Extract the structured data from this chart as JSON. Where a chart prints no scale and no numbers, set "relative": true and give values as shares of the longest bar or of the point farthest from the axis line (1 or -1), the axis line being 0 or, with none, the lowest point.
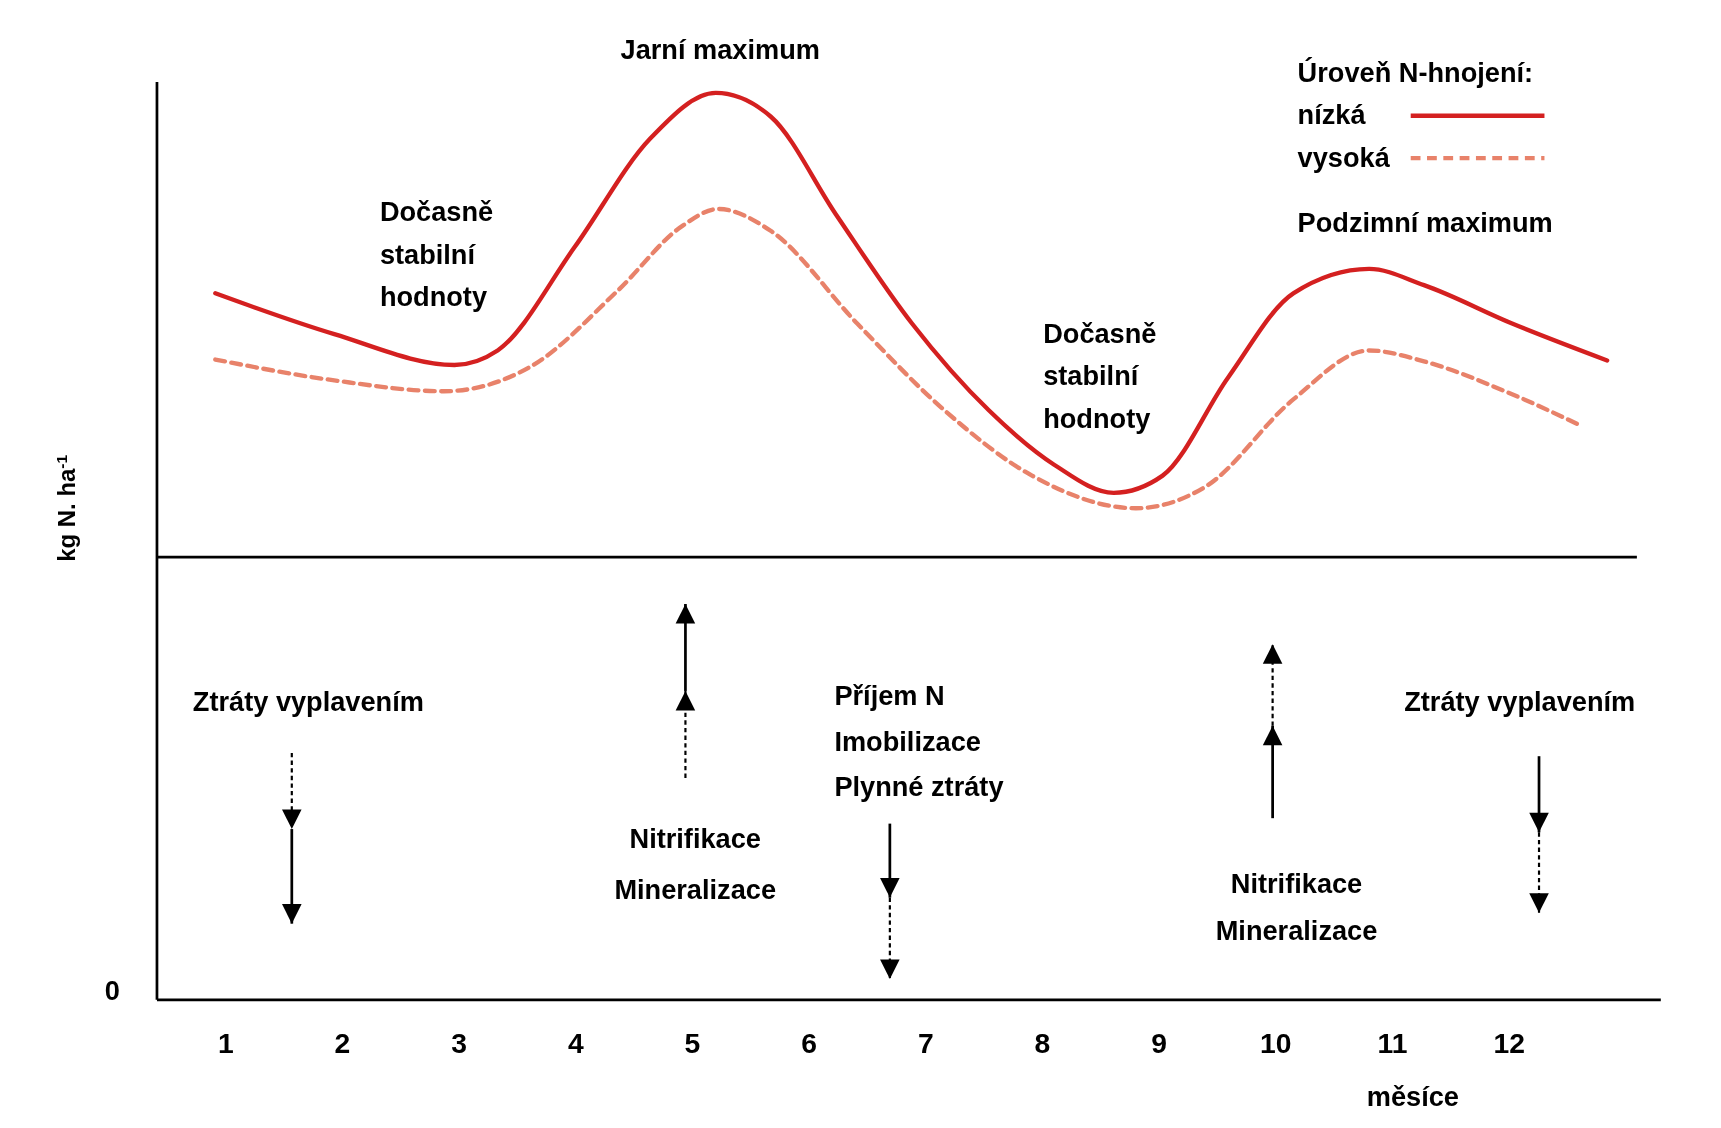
{
  "chart_data": {
    "type": "line",
    "relative": true,
    "xlabel": "měsíce",
    "ylabel": "kg N. ha$^{-1}$",
    "legend_title": "Úroveň N-hnojení:",
    "legend": "top right",
    "xlim": [
      0.41,
      13.3
    ],
    "xticks": [
      1,
      2,
      3,
      4,
      5,
      6,
      7,
      8,
      9,
      10,
      11,
      12
    ],
    "series": [
      {
        "name": "nízká",
        "color": "#d42020",
        "line_style": "solid",
        "x": [
          0.91,
          1.93,
          2.96,
          3.33,
          3.99,
          4.64,
          5.2,
          5.67,
          6.23,
          6.88,
          7.54,
          8.1,
          8.61,
          9.03,
          9.59,
          10.15,
          10.8,
          11.27,
          12.02,
          12.84
        ],
        "values": [
          0.779,
          0.734,
          0.7,
          0.716,
          0.83,
          0.95,
          1.0,
          0.974,
          0.866,
          0.746,
          0.65,
          0.59,
          0.559,
          0.578,
          0.686,
          0.779,
          0.806,
          0.788,
          0.746,
          0.705
        ]
      },
      {
        "name": "vysoká",
        "color": "#e8826a",
        "line_style": "dashed",
        "x": [
          0.91,
          1.93,
          2.87,
          3.61,
          4.36,
          4.92,
          5.22,
          5.67,
          6.41,
          7.16,
          7.91,
          8.8,
          9.4,
          10.15,
          10.8,
          11.27,
          12.02,
          12.6
        ],
        "values": [
          0.706,
          0.683,
          0.671,
          0.698,
          0.782,
          0.854,
          0.872,
          0.848,
          0.746,
          0.65,
          0.578,
          0.542,
          0.566,
          0.662,
          0.716,
          0.704,
          0.668,
          0.634
        ]
      }
    ],
    "ref_lines": [
      {
        "axis": "y",
        "value": 0.488,
        "color": "#000000"
      }
    ],
    "annotations": [
      "Jarní maximum",
      "Dočasně\nstabilní\nhodnoty",
      "Dočasně\nstabilní\nhodnoty",
      "Podzimní maximum",
      "Ztráty vyplavením",
      "Nitrifikace\nMineralizace",
      "Příjem N\nImobilizace\nPlynné ztráty",
      "Nitrifikace\nMineralizace",
      "Ztráty vyplavením",
      "0"
    ]
  }
}
